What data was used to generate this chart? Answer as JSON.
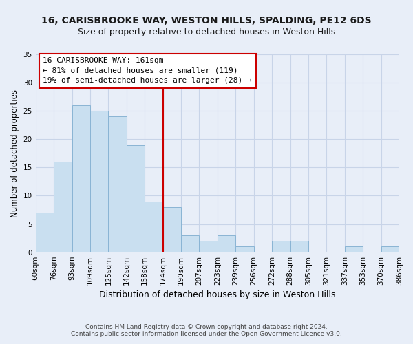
{
  "title": "16, CARISBROOKE WAY, WESTON HILLS, SPALDING, PE12 6DS",
  "subtitle": "Size of property relative to detached houses in Weston Hills",
  "xlabel": "Distribution of detached houses by size in Weston Hills",
  "ylabel": "Number of detached properties",
  "bar_values": [
    7,
    16,
    26,
    25,
    24,
    19,
    9,
    8,
    3,
    2,
    3,
    1,
    0,
    2,
    2,
    0,
    0,
    1,
    0,
    1
  ],
  "bin_labels": [
    "60sqm",
    "76sqm",
    "93sqm",
    "109sqm",
    "125sqm",
    "142sqm",
    "158sqm",
    "174sqm",
    "190sqm",
    "207sqm",
    "223sqm",
    "239sqm",
    "256sqm",
    "272sqm",
    "288sqm",
    "305sqm",
    "321sqm",
    "337sqm",
    "353sqm",
    "370sqm",
    "386sqm"
  ],
  "bar_color": "#c9dff0",
  "bar_edge_color": "#8ab4d4",
  "vline_color": "#cc0000",
  "annotation_title": "16 CARISBROOKE WAY: 161sqm",
  "annotation_line1": "← 81% of detached houses are smaller (119)",
  "annotation_line2": "19% of semi-detached houses are larger (28) →",
  "annotation_box_facecolor": "#ffffff",
  "annotation_box_edgecolor": "#cc0000",
  "ylim": [
    0,
    35
  ],
  "yticks": [
    0,
    5,
    10,
    15,
    20,
    25,
    30,
    35
  ],
  "footer1": "Contains HM Land Registry data © Crown copyright and database right 2024.",
  "footer2": "Contains public sector information licensed under the Open Government Licence v3.0.",
  "bg_color": "#e8eef8",
  "grid_color": "#c8d4e8",
  "title_fontsize": 10,
  "subtitle_fontsize": 9,
  "ylabel_fontsize": 8.5,
  "xlabel_fontsize": 9,
  "tick_fontsize": 7.5,
  "annot_fontsize": 8,
  "footer_fontsize": 6.5
}
